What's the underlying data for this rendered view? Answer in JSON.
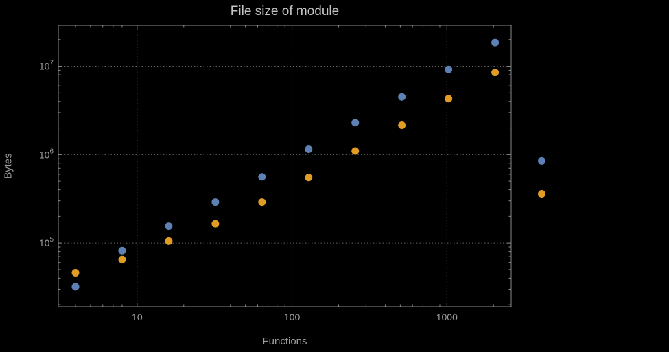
{
  "chart_data": {
    "type": "scatter",
    "title": "File size of module",
    "xlabel": "Functions",
    "ylabel": "Bytes",
    "x_scale": "log",
    "y_scale": "log",
    "x": [
      4,
      8,
      16,
      32,
      64,
      128,
      256,
      512,
      1024,
      2048,
      4096
    ],
    "series": [
      {
        "name": "series-blue",
        "color": "#5e81b5",
        "values": [
          32000,
          82000,
          155000,
          290000,
          560000,
          1150000,
          2300000,
          4500000,
          9200000,
          18500000,
          850000
        ]
      },
      {
        "name": "series-orange",
        "color": "#e19c24",
        "values": [
          46000,
          65000,
          105000,
          165000,
          290000,
          550000,
          1100000,
          2150000,
          4300000,
          8500000,
          360000
        ]
      }
    ],
    "xlim": [
      3.1,
      2600
    ],
    "ylim": [
      19000,
      29000000
    ],
    "x_ticks": [
      10,
      100,
      1000
    ],
    "x_tick_labels": [
      "10",
      "100",
      "1000"
    ],
    "y_ticks": [
      100000,
      1000000,
      10000000
    ],
    "y_tick_exponents": [
      5,
      6,
      7
    ],
    "grid": true,
    "grid_style": "dotted",
    "legend": "none",
    "marker_radius": 5.5,
    "colors": {
      "background": "#000000",
      "grid": "#636363",
      "frame": "#8a8a8a",
      "tick_label": "#9c9c9c",
      "axis_label": "#9c9c9c",
      "title": "#c4c4c4"
    }
  }
}
